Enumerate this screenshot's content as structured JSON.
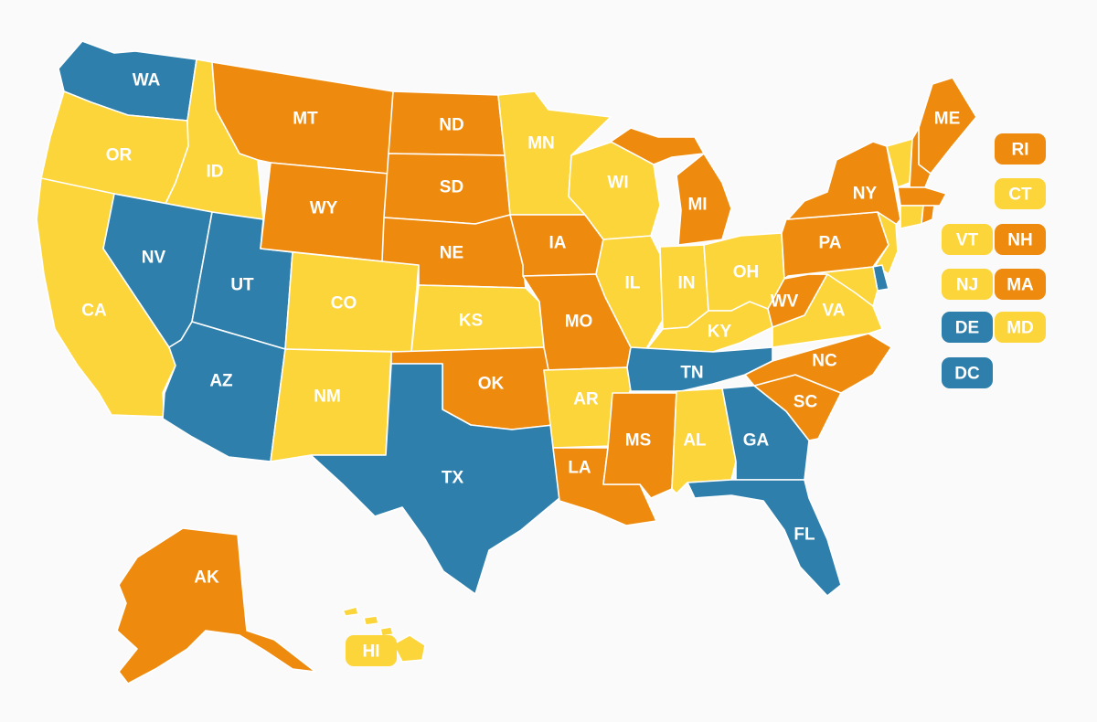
{
  "colors": {
    "blue": "#2e7fab",
    "orange": "#ee8a0d",
    "yellow": "#fcd53a",
    "border": "#ffffff",
    "background": "#fafafa"
  },
  "map": {
    "states": [
      {
        "code": "WA",
        "category": "blue"
      },
      {
        "code": "OR",
        "category": "yellow"
      },
      {
        "code": "CA",
        "category": "yellow"
      },
      {
        "code": "ID",
        "category": "yellow"
      },
      {
        "code": "NV",
        "category": "blue"
      },
      {
        "code": "UT",
        "category": "blue"
      },
      {
        "code": "AZ",
        "category": "blue"
      },
      {
        "code": "MT",
        "category": "orange"
      },
      {
        "code": "WY",
        "category": "orange"
      },
      {
        "code": "CO",
        "category": "yellow"
      },
      {
        "code": "NM",
        "category": "yellow"
      },
      {
        "code": "ND",
        "category": "orange"
      },
      {
        "code": "SD",
        "category": "orange"
      },
      {
        "code": "NE",
        "category": "orange"
      },
      {
        "code": "KS",
        "category": "yellow"
      },
      {
        "code": "OK",
        "category": "orange"
      },
      {
        "code": "TX",
        "category": "blue"
      },
      {
        "code": "MN",
        "category": "yellow"
      },
      {
        "code": "IA",
        "category": "orange"
      },
      {
        "code": "MO",
        "category": "orange"
      },
      {
        "code": "AR",
        "category": "yellow"
      },
      {
        "code": "LA",
        "category": "orange"
      },
      {
        "code": "WI",
        "category": "yellow"
      },
      {
        "code": "IL",
        "category": "yellow"
      },
      {
        "code": "MI",
        "category": "orange"
      },
      {
        "code": "IN",
        "category": "yellow"
      },
      {
        "code": "OH",
        "category": "yellow"
      },
      {
        "code": "KY",
        "category": "yellow"
      },
      {
        "code": "TN",
        "category": "blue"
      },
      {
        "code": "MS",
        "category": "orange"
      },
      {
        "code": "AL",
        "category": "yellow"
      },
      {
        "code": "GA",
        "category": "blue"
      },
      {
        "code": "FL",
        "category": "blue"
      },
      {
        "code": "SC",
        "category": "orange"
      },
      {
        "code": "NC",
        "category": "orange"
      },
      {
        "code": "VA",
        "category": "yellow"
      },
      {
        "code": "WV",
        "category": "orange"
      },
      {
        "code": "PA",
        "category": "orange"
      },
      {
        "code": "NY",
        "category": "orange"
      },
      {
        "code": "ME",
        "category": "orange"
      },
      {
        "code": "AK",
        "category": "orange"
      },
      {
        "code": "HI",
        "category": "yellow"
      }
    ],
    "small_states": [
      {
        "code": "RI",
        "category": "orange"
      },
      {
        "code": "CT",
        "category": "yellow"
      },
      {
        "code": "VT",
        "category": "yellow"
      },
      {
        "code": "NH",
        "category": "orange"
      },
      {
        "code": "NJ",
        "category": "yellow"
      },
      {
        "code": "MA",
        "category": "orange"
      },
      {
        "code": "DE",
        "category": "blue"
      },
      {
        "code": "MD",
        "category": "yellow"
      },
      {
        "code": "DC",
        "category": "blue"
      }
    ]
  }
}
